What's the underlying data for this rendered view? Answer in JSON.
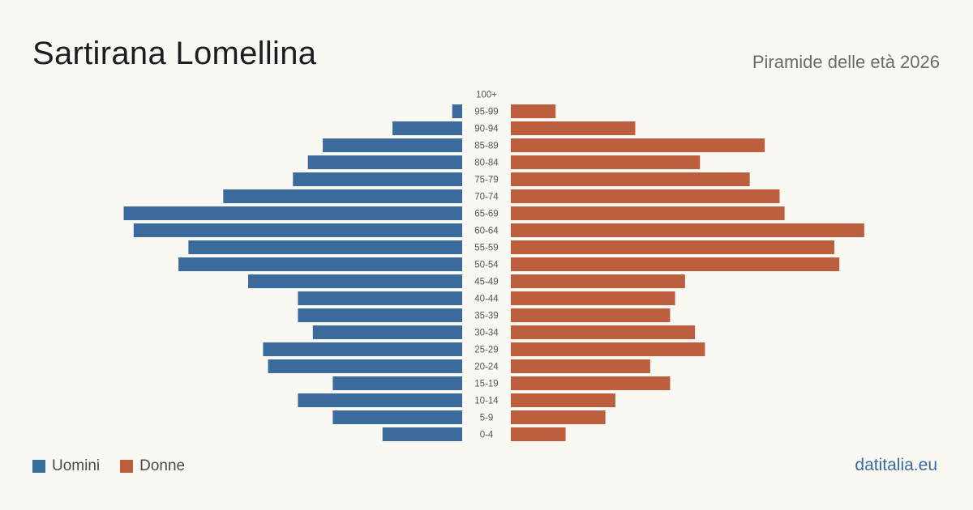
{
  "header": {
    "title": "Sartirana Lomellina",
    "subtitle": "Piramide delle età 2026"
  },
  "footer": {
    "site": "datitalia.eu"
  },
  "colors": {
    "men": "#3b6a9c",
    "women": "#bc5f3e",
    "age_label": "#555555"
  },
  "chart_data": {
    "type": "bar",
    "orientation": "horizontal-pyramid",
    "categories": [
      "100+",
      "95-99",
      "90-94",
      "85-89",
      "80-84",
      "75-79",
      "70-74",
      "65-69",
      "60-64",
      "55-59",
      "50-54",
      "45-49",
      "40-44",
      "35-39",
      "30-34",
      "25-29",
      "20-24",
      "15-19",
      "10-14",
      "5-9",
      "0-4"
    ],
    "series": [
      {
        "name": "Uomini",
        "values": [
          0,
          2,
          14,
          28,
          31,
          34,
          48,
          68,
          66,
          55,
          57,
          43,
          33,
          33,
          30,
          40,
          39,
          26,
          33,
          26,
          16
        ]
      },
      {
        "name": "Donne",
        "values": [
          0,
          9,
          25,
          51,
          38,
          48,
          54,
          55,
          71,
          65,
          66,
          35,
          33,
          32,
          37,
          39,
          28,
          32,
          21,
          19,
          11
        ]
      }
    ],
    "xlim": [
      0,
      72
    ],
    "grid": false,
    "legend": "bottom-left"
  }
}
